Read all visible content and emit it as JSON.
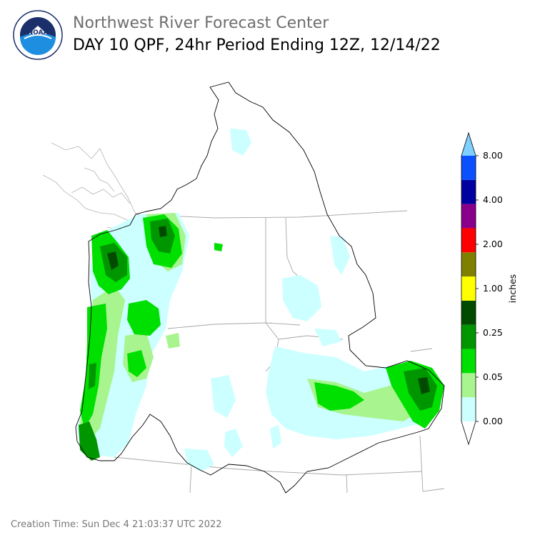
{
  "header": {
    "org": "Northwest River Forecast Center",
    "title": "DAY 10 QPF, 24hr Period Ending 12Z, 12/14/22",
    "logo_text": "NOAA",
    "logo_ring_text": "NATIONAL OCEANIC AND ATMOSPHERIC ADMINISTRATION · U.S. DEPARTMENT OF COMMERCE"
  },
  "colorbar": {
    "unit_label": "inches",
    "tick_labels": [
      "8.00",
      "4.00",
      "2.00",
      "1.00",
      "0.25",
      "0.05",
      "0.00"
    ],
    "bins": [
      {
        "color": "#ffffff"
      },
      {
        "color": "#ccffff"
      },
      {
        "color": "#a8f58f"
      },
      {
        "color": "#00e000"
      },
      {
        "color": "#009600"
      },
      {
        "color": "#004b00"
      },
      {
        "color": "#ffff00"
      },
      {
        "color": "#7f7f00"
      },
      {
        "color": "#ff0000"
      },
      {
        "color": "#8b008b"
      },
      {
        "color": "#0000a0"
      },
      {
        "color": "#0a50ff"
      },
      {
        "color": "#7fd0ff"
      }
    ]
  },
  "colors": {
    "precip_light": "#ccffff",
    "precip_mid": "#a8f58f",
    "precip_green": "#00e000",
    "precip_dkgreen": "#009600",
    "precip_darkest": "#004b00",
    "border_basin": "#000000",
    "border_state": "#a6a6a6",
    "noaa_blue": "#1e5aa8",
    "noaa_navy": "#1b2f6b"
  },
  "footer": {
    "creation_time": "Creation Time: Sun Dec 4 21:03:37 UTC 2022"
  }
}
